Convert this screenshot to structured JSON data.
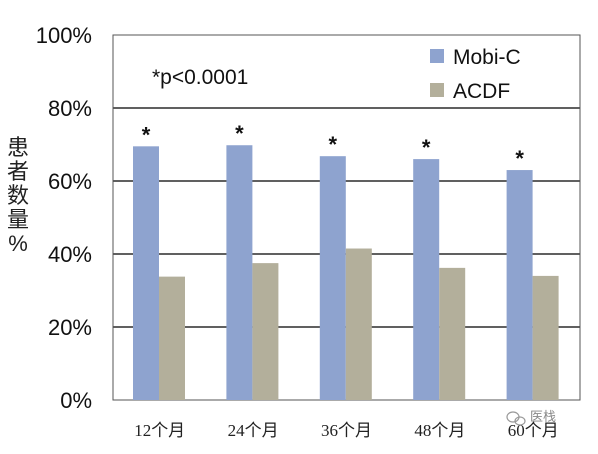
{
  "chart_data": {
    "type": "bar",
    "categories": [
      "12个月",
      "24个月",
      "36个月",
      "48个月",
      "60个月"
    ],
    "series": [
      {
        "name": "Mobi-C",
        "values": [
          69.5,
          69.8,
          66.8,
          66.0,
          63.0
        ],
        "color": "#8EA3CF"
      },
      {
        "name": "ACDF",
        "values": [
          33.8,
          37.5,
          41.5,
          36.2,
          34.0
        ],
        "color": "#B3AF9B"
      }
    ],
    "ylim": [
      0,
      100
    ],
    "yticks": [
      0,
      20,
      40,
      60,
      80,
      100
    ],
    "ytick_labels": [
      "0%",
      "20%",
      "40%",
      "60%",
      "80%",
      "100%"
    ],
    "ylabel": "患者数量%",
    "ylabel_chars": [
      "患",
      "者",
      "数",
      "量",
      "%"
    ],
    "xlabel": "",
    "annotation": "*p<0.0001",
    "significance_marker": "*",
    "legend_position": "top-right",
    "grid": true
  },
  "watermark": {
    "text": "医栈",
    "icon": "wechat-icon"
  }
}
